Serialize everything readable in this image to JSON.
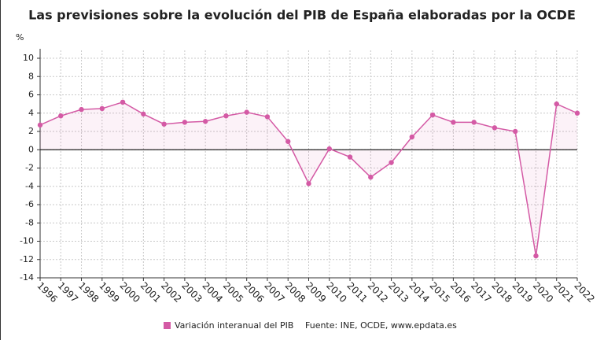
{
  "chart_data": {
    "type": "line",
    "title": "Las previsiones sobre la evolución del PIB de España elaboradas por la OCDE",
    "y_label": "%",
    "categories": [
      "1996",
      "1997",
      "1998",
      "1999",
      "2000",
      "2001",
      "2002",
      "2003",
      "2004",
      "2005",
      "2006",
      "2007",
      "2008",
      "2009",
      "2010",
      "2011",
      "2012",
      "2013",
      "2014",
      "2015",
      "2016",
      "2017",
      "2018",
      "2019",
      "2020",
      "2021",
      "2022"
    ],
    "series": [
      {
        "name": "Variación interanual del PIB",
        "color": "#d45aa5",
        "values": [
          2.7,
          3.7,
          4.4,
          4.5,
          5.2,
          3.9,
          2.8,
          3.0,
          3.1,
          3.7,
          4.1,
          3.6,
          0.9,
          -3.7,
          0.1,
          -0.8,
          -3.0,
          -1.4,
          1.4,
          3.8,
          3.0,
          3.0,
          2.4,
          2.0,
          -11.6,
          5.0,
          4.0
        ]
      }
    ],
    "ylim": [
      -14,
      10
    ],
    "yticks": [
      -14,
      -12,
      -10,
      -8,
      -6,
      -4,
      -2,
      0,
      2,
      4,
      6,
      8,
      10
    ],
    "grid": true,
    "area": true,
    "source": "Fuente: INE, OCDE, www.epdata.es"
  }
}
